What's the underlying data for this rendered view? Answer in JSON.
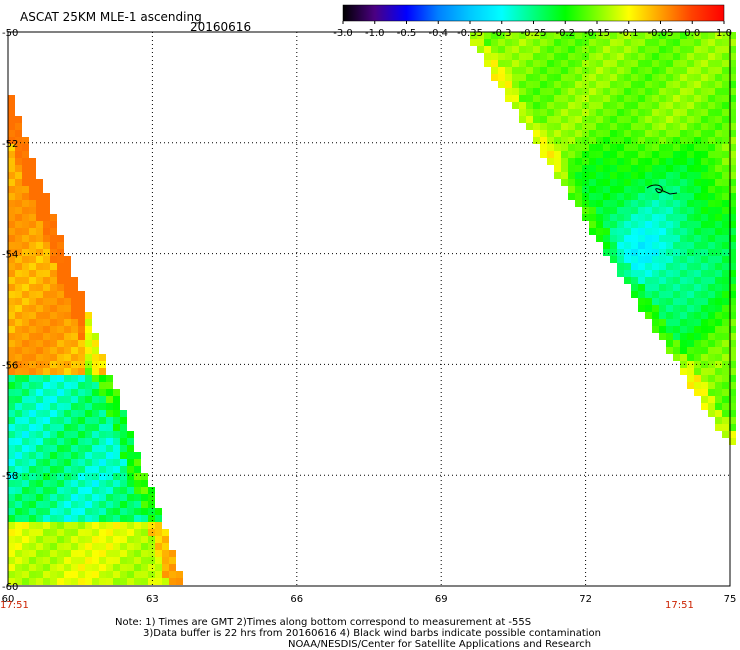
{
  "header": {
    "title": "ASCAT 25KM MLE-1 ascending",
    "date": "20160616"
  },
  "colorbar": {
    "tick_labels": [
      "-3.0",
      "-1.0",
      "-0.5",
      "-0.4",
      "-0.35",
      "-0.3",
      "-0.25",
      "-0.2",
      "-0.15",
      "-0.1",
      "-0.05",
      "0.0",
      "1.0"
    ],
    "colors": [
      "#000000",
      "#4b0082",
      "#0000ff",
      "#0080ff",
      "#00c8ff",
      "#00ffff",
      "#00ff80",
      "#00ff00",
      "#80ff00",
      "#ffff00",
      "#ffa000",
      "#ff4000",
      "#ff0000"
    ]
  },
  "chart_data": {
    "type": "heatmap",
    "title": "ASCAT 25KM MLE-1 ascending",
    "date": "20160616",
    "x_ticks": [
      "60",
      "63",
      "66",
      "69",
      "72",
      "75"
    ],
    "y_ticks": [
      "-50",
      "-52",
      "-54",
      "-56",
      "-58",
      "-60"
    ],
    "xlim": [
      60,
      75
    ],
    "ylim": [
      -60,
      -50
    ],
    "grid": true,
    "times": [
      "17:51",
      "17:51"
    ],
    "swaths": [
      {
        "name": "west",
        "lon_range": [
          60,
          63.7
        ],
        "lat_range": [
          -60,
          -51
        ],
        "dominant_range": [
          -0.3,
          0.0
        ],
        "notes": "orange/yellow near 60-61.5E, -52 to -56; cyan/green centre; yellow band near -59 to -60"
      },
      {
        "name": "east",
        "lon_range": [
          69.5,
          75
        ],
        "lat_range": [
          -57.5,
          -50.5
        ],
        "dominant_range": [
          -0.3,
          -0.15
        ],
        "notes": "cyan core near 72-75E, -53 to -55; green edges; orange/yellow patches along south edge"
      }
    ],
    "contamination_marker": {
      "lon": 73.3,
      "lat": -53.0
    }
  },
  "footer": {
    "time_left": "17:51",
    "time_right": "17:51",
    "note_line1": "Note: 1) Times are GMT 2)Times along bottom correspond to measurement at -55S",
    "note_line2": "3)Data buffer is 22 hrs from 20160616 4) Black wind barbs indicate possible contamination",
    "note_line3": "NOAA/NESDIS/Center for Satellite Applications and Research"
  }
}
